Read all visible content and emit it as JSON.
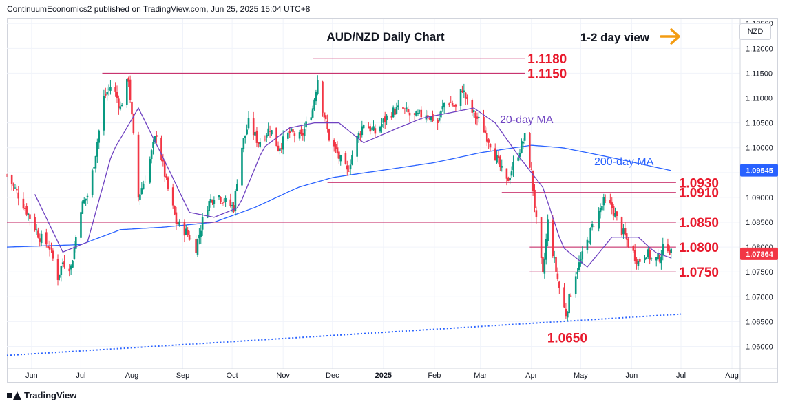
{
  "header": {
    "publisher_text": "ContinuumEconomics2 published on TradingView.com, Jun 25, 2025 15:04 UTC+8"
  },
  "footer": {
    "brand": "TradingView"
  },
  "currency_label": "NZD",
  "chart_data": {
    "type": "candlestick",
    "title": "AUD/NZD Daily Chart",
    "annotation_view": "1-2 day view",
    "price_axis": {
      "ticks": [
        "1.12500",
        "1.12000",
        "1.11500",
        "1.11000",
        "1.10500",
        "1.10000",
        "1.09500",
        "1.09000",
        "1.08500",
        "1.08000",
        "1.07500",
        "1.07000",
        "1.06500",
        "1.06000"
      ],
      "range": [
        1.0555,
        1.126
      ]
    },
    "time_axis": {
      "labels": [
        "Jun",
        "Jul",
        "Aug",
        "Sep",
        "Oct",
        "Nov",
        "Dec",
        "2025",
        "Feb",
        "Mar",
        "Apr",
        "May",
        "Jun",
        "Jul",
        "Aug"
      ],
      "dates": [
        "2024-06-01",
        "2024-07-01",
        "2024-08-01",
        "2024-09-01",
        "2024-10-01",
        "2024-11-01",
        "2024-12-01",
        "2025-01-01",
        "2025-02-01",
        "2025-03-01",
        "2025-04-01",
        "2025-05-01",
        "2025-06-01",
        "2025-07-01",
        "2025-08-01"
      ],
      "start": "2024-05-17",
      "end": "2025-08-06"
    },
    "price_badges": [
      {
        "value": "1.09545",
        "price": 1.09545,
        "color": "#2962ff"
      },
      {
        "value": "1.07864",
        "price": 1.07864,
        "color": "#f23645"
      }
    ],
    "levels": [
      {
        "label": "1.1180",
        "price": 1.118,
        "from": "2024-11-19",
        "to": "2025-03-28"
      },
      {
        "label": "1.1150",
        "price": 1.115,
        "from": "2024-07-14",
        "to": "2025-03-28"
      },
      {
        "label": "1.0930",
        "price": 1.093,
        "from": "2024-11-28",
        "to": "2025-06-28"
      },
      {
        "label": "1.0910",
        "price": 1.091,
        "from": "2025-03-14",
        "to": "2025-06-28"
      },
      {
        "label": "1.0850",
        "price": 1.085,
        "from": "2024-05-17",
        "to": "2025-06-28"
      },
      {
        "label": "1.0800",
        "price": 1.08,
        "from": "2025-03-31",
        "to": "2025-06-28"
      },
      {
        "label": "1.0750",
        "price": 1.075,
        "from": "2025-03-31",
        "to": "2025-06-28"
      }
    ],
    "low_label": {
      "label": "1.0650",
      "price": 1.065,
      "date": "2025-04-22"
    },
    "ma_labels": [
      {
        "label": "20-day MA",
        "color": "#6f42c1"
      },
      {
        "label": "200-day MA",
        "color": "#2962ff"
      }
    ],
    "trendline": {
      "from": {
        "date": "2024-05-17",
        "price": 1.0582
      },
      "to": {
        "date": "2025-07-01",
        "price": 1.0665
      }
    },
    "candle_anchors": [
      [
        "2024-05-17",
        1.0945
      ],
      [
        "2024-05-24",
        1.0905
      ],
      [
        "2024-05-31",
        1.086
      ],
      [
        "2024-06-06",
        1.082
      ],
      [
        "2024-06-12",
        1.08
      ],
      [
        "2024-06-17",
        1.074
      ],
      [
        "2024-06-20",
        1.077
      ],
      [
        "2024-06-25",
        1.076
      ],
      [
        "2024-07-01",
        1.088
      ],
      [
        "2024-07-06",
        1.091
      ],
      [
        "2024-07-10",
        1.099
      ],
      [
        "2024-07-15",
        1.11
      ],
      [
        "2024-07-20",
        1.113
      ],
      [
        "2024-07-25",
        1.108
      ],
      [
        "2024-07-30",
        1.114
      ],
      [
        "2024-08-05",
        1.09
      ],
      [
        "2024-08-10",
        1.095
      ],
      [
        "2024-08-16",
        1.103
      ],
      [
        "2024-08-22",
        1.093
      ],
      [
        "2024-08-28",
        1.085
      ],
      [
        "2024-09-03",
        1.083
      ],
      [
        "2024-09-09",
        1.08
      ],
      [
        "2024-09-15",
        1.088
      ],
      [
        "2024-09-21",
        1.091
      ],
      [
        "2024-09-27",
        1.089
      ],
      [
        "2024-10-02",
        1.088
      ],
      [
        "2024-10-06",
        1.099
      ],
      [
        "2024-10-11",
        1.105
      ],
      [
        "2024-10-17",
        1.101
      ],
      [
        "2024-10-24",
        1.104
      ],
      [
        "2024-10-29",
        1.1
      ],
      [
        "2024-11-05",
        1.103
      ],
      [
        "2024-11-12",
        1.102
      ],
      [
        "2024-11-19",
        1.108
      ],
      [
        "2024-11-22",
        1.114
      ],
      [
        "2024-11-25",
        1.108
      ],
      [
        "2024-11-29",
        1.102
      ],
      [
        "2024-12-05",
        1.098
      ],
      [
        "2024-12-10",
        1.095
      ],
      [
        "2024-12-15",
        1.101
      ],
      [
        "2024-12-20",
        1.105
      ],
      [
        "2024-12-27",
        1.103
      ],
      [
        "2025-01-05",
        1.107
      ],
      [
        "2025-01-12",
        1.108
      ],
      [
        "2025-01-19",
        1.106
      ],
      [
        "2025-01-27",
        1.107
      ],
      [
        "2025-02-03",
        1.105
      ],
      [
        "2025-02-08",
        1.11
      ],
      [
        "2025-02-14",
        1.108
      ],
      [
        "2025-02-18",
        1.112
      ],
      [
        "2025-02-22",
        1.108
      ],
      [
        "2025-03-01",
        1.105
      ],
      [
        "2025-03-07",
        1.101
      ],
      [
        "2025-03-13",
        1.096
      ],
      [
        "2025-03-17",
        1.093
      ],
      [
        "2025-03-24",
        1.099
      ],
      [
        "2025-03-28",
        1.102
      ],
      [
        "2025-04-01",
        1.095
      ],
      [
        "2025-04-04",
        1.085
      ],
      [
        "2025-04-08",
        1.074
      ],
      [
        "2025-04-11",
        1.085
      ],
      [
        "2025-04-15",
        1.077
      ],
      [
        "2025-04-19",
        1.07
      ],
      [
        "2025-04-22",
        1.0665
      ],
      [
        "2025-04-27",
        1.074
      ],
      [
        "2025-05-03",
        1.079
      ],
      [
        "2025-05-09",
        1.085
      ],
      [
        "2025-05-15",
        1.089
      ],
      [
        "2025-05-20",
        1.088
      ],
      [
        "2025-05-25",
        1.084
      ],
      [
        "2025-05-31",
        1.08
      ],
      [
        "2025-06-05",
        1.077
      ],
      [
        "2025-06-10",
        1.079
      ],
      [
        "2025-06-14",
        1.077
      ],
      [
        "2025-06-18",
        1.078
      ],
      [
        "2025-06-22",
        1.081
      ],
      [
        "2025-06-25",
        1.07864
      ]
    ],
    "ma20_anchors": [
      [
        "2024-06-01",
        1.092
      ],
      [
        "2024-06-20",
        1.079
      ],
      [
        "2024-07-05",
        1.081
      ],
      [
        "2024-07-20",
        1.099
      ],
      [
        "2024-08-05",
        1.108
      ],
      [
        "2024-08-20",
        1.098
      ],
      [
        "2024-09-05",
        1.087
      ],
      [
        "2024-09-20",
        1.086
      ],
      [
        "2024-10-05",
        1.088
      ],
      [
        "2024-10-20",
        1.1
      ],
      [
        "2024-11-05",
        1.104
      ],
      [
        "2024-11-20",
        1.105
      ],
      [
        "2024-12-05",
        1.105
      ],
      [
        "2024-12-20",
        1.101
      ],
      [
        "2025-01-10",
        1.104
      ],
      [
        "2025-01-25",
        1.106
      ],
      [
        "2025-02-10",
        1.107
      ],
      [
        "2025-02-25",
        1.108
      ],
      [
        "2025-03-10",
        1.105
      ],
      [
        "2025-03-25",
        1.098
      ],
      [
        "2025-04-08",
        1.092
      ],
      [
        "2025-04-20",
        1.08
      ],
      [
        "2025-05-05",
        1.076
      ],
      [
        "2025-05-20",
        1.082
      ],
      [
        "2025-06-05",
        1.082
      ],
      [
        "2025-06-15",
        1.079
      ],
      [
        "2025-06-25",
        1.0778
      ]
    ],
    "ma200_anchors": [
      [
        "2024-05-17",
        1.08
      ],
      [
        "2024-07-01",
        1.0805
      ],
      [
        "2024-07-25",
        1.0835
      ],
      [
        "2024-08-20",
        1.084
      ],
      [
        "2024-09-20",
        1.085
      ],
      [
        "2024-10-15",
        1.088
      ],
      [
        "2024-11-10",
        1.092
      ],
      [
        "2024-12-01",
        1.094
      ],
      [
        "2025-01-01",
        1.0955
      ],
      [
        "2025-02-01",
        1.097
      ],
      [
        "2025-03-01",
        1.099
      ],
      [
        "2025-04-01",
        1.1005
      ],
      [
        "2025-04-20",
        1.1
      ],
      [
        "2025-05-20",
        1.098
      ],
      [
        "2025-06-25",
        1.0954
      ]
    ]
  },
  "colors": {
    "up_candle": "#089981",
    "down_candle": "#f23645",
    "level_line": "#c2185b",
    "level_label": "#e8192c",
    "ma20": "#6f42c1",
    "ma200": "#2962ff",
    "trendline": "#2962ff",
    "arrow": "#f39c12"
  }
}
